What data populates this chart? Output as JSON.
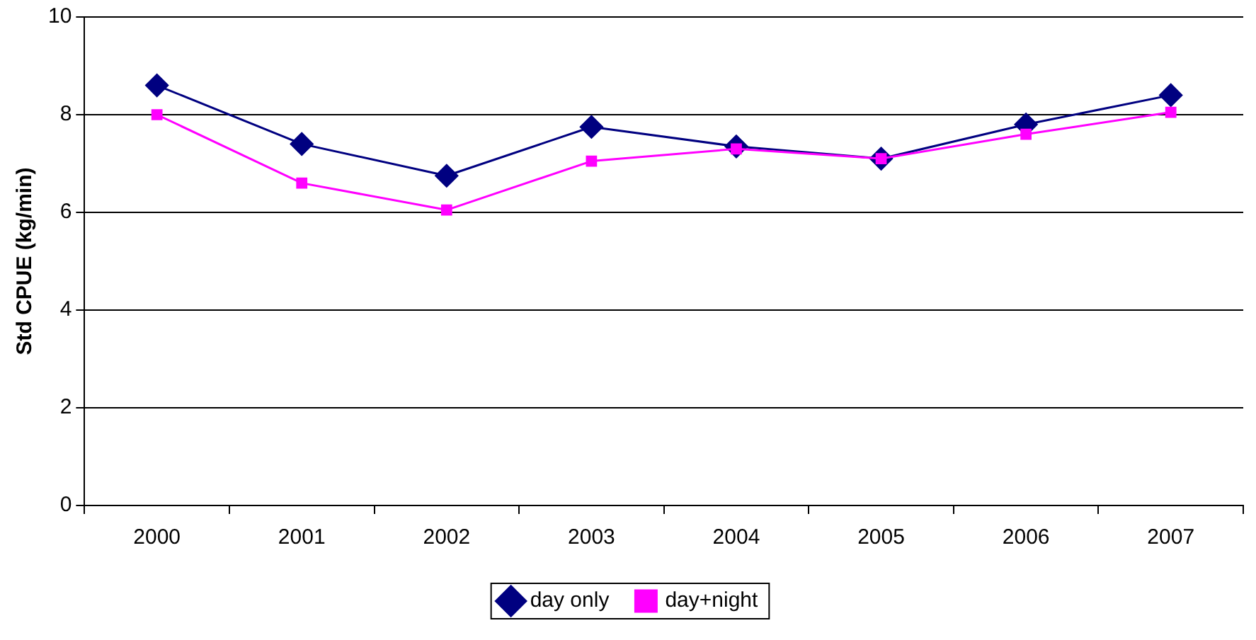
{
  "chart_data": {
    "type": "line",
    "ylabel": "Std CPUE (kg/min)",
    "categories": [
      "2000",
      "2001",
      "2002",
      "2003",
      "2004",
      "2005",
      "2006",
      "2007"
    ],
    "series": [
      {
        "name": "day only",
        "color": "#000080",
        "marker": "diamond",
        "values": [
          8.6,
          7.4,
          6.75,
          7.75,
          7.35,
          7.1,
          7.8,
          8.4
        ]
      },
      {
        "name": "day+night",
        "color": "#ff00ff",
        "marker": "square",
        "values": [
          8.0,
          6.6,
          6.05,
          7.05,
          7.3,
          7.1,
          7.6,
          8.05
        ]
      }
    ],
    "ylim": [
      0,
      10
    ],
    "yticks": [
      0,
      2,
      4,
      6,
      8,
      10
    ],
    "grid": "y",
    "legend": "bottom"
  }
}
